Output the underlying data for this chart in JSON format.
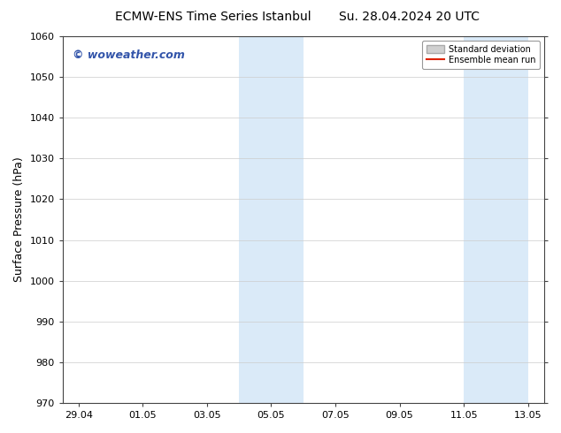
{
  "title_left": "ECMW-ENS Time Series Istanbul",
  "title_right": "Su. 28.04.2024 20 UTC",
  "ylabel": "Surface Pressure (hPa)",
  "ylim": [
    970,
    1060
  ],
  "yticks": [
    970,
    980,
    990,
    1000,
    1010,
    1020,
    1030,
    1040,
    1050,
    1060
  ],
  "xlim": [
    0,
    15
  ],
  "xtick_labels": [
    "29.04",
    "01.05",
    "03.05",
    "05.05",
    "07.05",
    "09.05",
    "11.05",
    "13.05"
  ],
  "xtick_positions": [
    0.5,
    2.5,
    4.5,
    6.5,
    8.5,
    10.5,
    12.5,
    14.5
  ],
  "shaded_bands": [
    {
      "x_start": 5.5,
      "x_end": 7.5
    },
    {
      "x_start": 12.5,
      "x_end": 14.5
    }
  ],
  "shaded_color": "#daeaf8",
  "watermark_text": "© woweather.com",
  "watermark_color": "#3355aa",
  "legend_std_label": "Standard deviation",
  "legend_mean_label": "Ensemble mean run",
  "legend_std_color": "#d0d0d0",
  "legend_std_edge": "#aaaaaa",
  "legend_mean_color": "#dd2200",
  "bg_color": "#ffffff",
  "plot_bg_color": "#ffffff",
  "spine_color": "#444444",
  "title_fontsize": 10,
  "tick_fontsize": 8,
  "ylabel_fontsize": 9,
  "watermark_fontsize": 9
}
